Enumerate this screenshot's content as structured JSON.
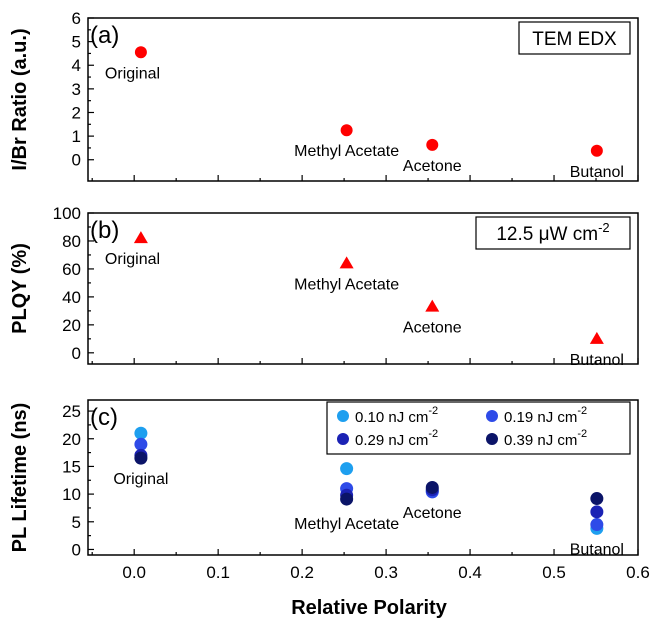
{
  "chart_data": [
    {
      "type": "scatter",
      "panel_label": "(a)",
      "ylabel": "I/Br Ratio (a.u.)",
      "ylim": [
        -0.9,
        6
      ],
      "yticks": [
        "0",
        "1",
        "2",
        "3",
        "4",
        "5",
        "6"
      ],
      "box_label": "TEM EDX",
      "box_label_sup": "",
      "marker": "circle",
      "color": "#ff0000",
      "points": [
        {
          "x": 0.008,
          "y": 4.55,
          "label": "Original"
        },
        {
          "x": 0.253,
          "y": 1.25,
          "label": "Methyl Acetate"
        },
        {
          "x": 0.355,
          "y": 0.63,
          "label": "Acetone"
        },
        {
          "x": 0.551,
          "y": 0.38,
          "label": "Butanol"
        }
      ]
    },
    {
      "type": "scatter",
      "panel_label": "(b)",
      "ylabel": "PLQY (%)",
      "ylim": [
        -8,
        100
      ],
      "yticks": [
        "0",
        "20",
        "40",
        "60",
        "80",
        "100"
      ],
      "box_label": "12.5 μW cm",
      "box_label_sup": "-2",
      "marker": "triangle",
      "color": "#ff0000",
      "points": [
        {
          "x": 0.008,
          "y": 82,
          "label": "Original"
        },
        {
          "x": 0.253,
          "y": 64,
          "label": "Methyl Acetate"
        },
        {
          "x": 0.355,
          "y": 33,
          "label": "Acetone"
        },
        {
          "x": 0.551,
          "y": 10,
          "label": "Butanol"
        }
      ]
    },
    {
      "type": "scatter",
      "panel_label": "(c)",
      "ylabel": "PL Lifetime (ns)",
      "xlabel": "Relative Polarity",
      "xlim": [
        -0.055,
        0.6
      ],
      "xticks": [
        "0.0",
        "0.1",
        "0.2",
        "0.3",
        "0.4",
        "0.5",
        "0.6"
      ],
      "ylim": [
        -1,
        27
      ],
      "yticks": [
        "0",
        "5",
        "10",
        "15",
        "20",
        "25"
      ],
      "categories": [
        "Original",
        "Methyl Acetate",
        "Acetone",
        "Butanol"
      ],
      "x": [
        0.008,
        0.253,
        0.355,
        0.551
      ],
      "series": [
        {
          "name": "0.10 nJ cm",
          "sup": "-2",
          "color": "#1e9fef",
          "values": [
            21.0,
            14.6,
            10.5,
            3.8
          ]
        },
        {
          "name": "0.19 nJ cm",
          "sup": "-2",
          "color": "#2e4be8",
          "values": [
            19.0,
            11.0,
            10.4,
            4.5
          ]
        },
        {
          "name": "0.29 nJ cm",
          "sup": "-2",
          "color": "#1b22b4",
          "values": [
            17.0,
            9.8,
            10.8,
            6.8
          ]
        },
        {
          "name": "0.39 nJ cm",
          "sup": "-2",
          "color": "#0b1468",
          "values": [
            16.5,
            9.1,
            11.2,
            9.2
          ]
        }
      ]
    }
  ]
}
